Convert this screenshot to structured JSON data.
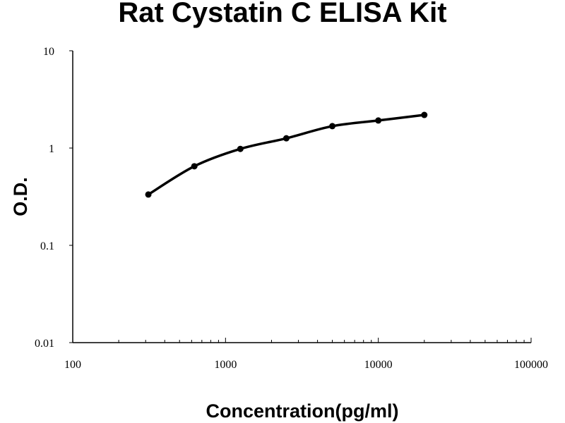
{
  "chart_data": {
    "type": "line",
    "title": "Rat Cystatin C ELISA Kit",
    "xlabel": "Concentration(pg/ml)",
    "ylabel": "O.D.",
    "x_scale": "log",
    "y_scale": "log",
    "xlim": [
      100,
      100000
    ],
    "ylim": [
      0.01,
      10
    ],
    "x_ticks": [
      "100",
      "1000",
      "10000",
      "100000"
    ],
    "y_ticks": [
      "0.01",
      "0.1",
      "1",
      "10"
    ],
    "grid": false,
    "series": [
      {
        "x": [
          312.5,
          625,
          1250,
          2500,
          5000,
          10000,
          20000
        ],
        "y": [
          0.333,
          0.65,
          0.98,
          1.26,
          1.68,
          1.92,
          2.19
        ],
        "color": "#000000",
        "marker": "circle",
        "fit": "smooth curve"
      }
    ]
  }
}
